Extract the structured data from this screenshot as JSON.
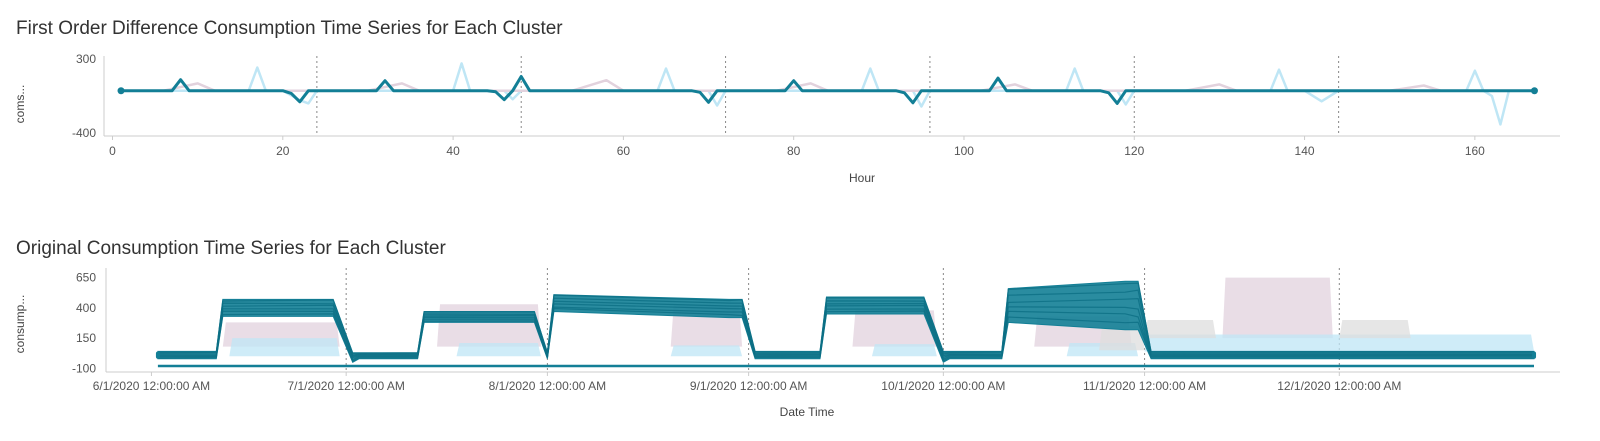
{
  "colors": {
    "highlight": "#137f96",
    "light_blue": "#bfe6f5",
    "pink": "#e2d2dd",
    "grey": "#dedede",
    "axis": "#cccccc",
    "divider": "#888888"
  },
  "chart_data": [
    {
      "type": "line",
      "title": "First Order Difference Consumption Time Series for Each Cluster",
      "xlabel": "Hour",
      "ylabel": "coms...",
      "xlim": [
        -1,
        170
      ],
      "ylim": [
        -430,
        330
      ],
      "x_ticks": [
        0,
        20,
        40,
        60,
        80,
        100,
        120,
        140,
        160
      ],
      "y_ticks": [
        300,
        -400
      ],
      "dividers": [
        24,
        48,
        72,
        96,
        120,
        144
      ],
      "highlight_series": {
        "x": [
          1,
          2,
          4,
          6,
          7,
          8,
          9,
          10,
          12,
          14,
          16,
          18,
          20,
          21,
          22,
          23,
          24,
          26,
          28,
          30,
          31,
          32,
          33,
          34,
          36,
          38,
          40,
          42,
          44,
          45,
          46,
          47,
          48,
          49,
          50,
          52,
          54,
          56,
          58,
          60,
          62,
          64,
          66,
          68,
          69,
          70,
          71,
          72,
          74,
          76,
          78,
          79,
          80,
          81,
          82,
          84,
          86,
          88,
          90,
          92,
          93,
          94,
          95,
          96,
          98,
          100,
          102,
          103,
          104,
          105,
          106,
          108,
          110,
          112,
          114,
          116,
          117,
          118,
          119,
          120,
          122,
          124,
          126,
          128,
          130,
          132,
          134,
          136,
          138,
          140,
          142,
          144,
          146,
          148,
          150,
          152,
          154,
          156,
          158,
          160,
          162,
          164,
          167
        ],
        "y": [
          0,
          0,
          0,
          0,
          0,
          105,
          0,
          0,
          0,
          0,
          0,
          0,
          0,
          -25,
          -105,
          0,
          0,
          0,
          0,
          0,
          0,
          95,
          0,
          0,
          0,
          0,
          0,
          0,
          0,
          -10,
          -85,
          0,
          135,
          0,
          0,
          0,
          0,
          0,
          0,
          0,
          0,
          0,
          0,
          0,
          -15,
          -110,
          0,
          0,
          0,
          0,
          0,
          0,
          95,
          0,
          0,
          0,
          0,
          0,
          0,
          0,
          -20,
          -115,
          0,
          0,
          0,
          0,
          0,
          0,
          120,
          0,
          0,
          0,
          0,
          0,
          0,
          0,
          -20,
          -120,
          0,
          0,
          0,
          0,
          0,
          0,
          0,
          0,
          0,
          0,
          0,
          0,
          0,
          0,
          0,
          0,
          0,
          0,
          0,
          0,
          0,
          0,
          0,
          0,
          0
        ]
      },
      "background_series": [
        {
          "color_key": "light_blue",
          "x": [
            1,
            4,
            8,
            10,
            12,
            16,
            17,
            18,
            20,
            22,
            23,
            24,
            26,
            28,
            32,
            34,
            36,
            40,
            41,
            42,
            44,
            46,
            47,
            48,
            50,
            52,
            56,
            60,
            64,
            65,
            66,
            68,
            70,
            71,
            72,
            74,
            76,
            80,
            84,
            88,
            89,
            90,
            92,
            94,
            95,
            96,
            98,
            100,
            104,
            108,
            112,
            113,
            114,
            116,
            118,
            119,
            120,
            124,
            128,
            132,
            136,
            137,
            138,
            140,
            142,
            144,
            148,
            152,
            156,
            159,
            160,
            161,
            162,
            163,
            164,
            167
          ],
          "y": [
            0,
            0,
            0,
            0,
            0,
            0,
            220,
            0,
            0,
            -90,
            -120,
            0,
            0,
            0,
            0,
            0,
            0,
            0,
            260,
            0,
            0,
            0,
            -80,
            0,
            0,
            0,
            0,
            0,
            0,
            210,
            0,
            0,
            0,
            -140,
            0,
            0,
            0,
            0,
            0,
            0,
            210,
            0,
            0,
            0,
            -150,
            0,
            0,
            0,
            0,
            0,
            0,
            210,
            0,
            0,
            0,
            -130,
            0,
            0,
            0,
            0,
            0,
            200,
            0,
            0,
            -100,
            0,
            0,
            0,
            0,
            0,
            190,
            0,
            -50,
            -320,
            0,
            0
          ]
        },
        {
          "color_key": "pink",
          "x": [
            1,
            6,
            10,
            12,
            16,
            24,
            30,
            34,
            36,
            40,
            48,
            54,
            58,
            60,
            64,
            72,
            78,
            82,
            84,
            88,
            96,
            102,
            106,
            108,
            112,
            120,
            126,
            130,
            132,
            136,
            144,
            150,
            154,
            156,
            160,
            167
          ],
          "y": [
            0,
            0,
            70,
            0,
            0,
            0,
            0,
            70,
            0,
            0,
            0,
            0,
            100,
            0,
            0,
            0,
            0,
            70,
            0,
            0,
            0,
            0,
            60,
            0,
            0,
            0,
            0,
            60,
            0,
            0,
            0,
            0,
            50,
            0,
            0,
            0
          ]
        }
      ]
    },
    {
      "type": "line",
      "title": "Original Consumption Time Series for Each Cluster",
      "xlabel": "Date Time",
      "ylabel": "consump...",
      "xlim": [
        "2020-05-25",
        "2021-01-04"
      ],
      "ylim": [
        -130,
        730
      ],
      "x_ticks": [
        {
          "date": "2020-06-01",
          "label": "6/1/2020 12:00:00 AM"
        },
        {
          "date": "2020-07-01",
          "label": "7/1/2020 12:00:00 AM"
        },
        {
          "date": "2020-08-01",
          "label": "8/1/2020 12:00:00 AM"
        },
        {
          "date": "2020-09-01",
          "label": "9/1/2020 12:00:00 AM"
        },
        {
          "date": "2020-10-01",
          "label": "10/1/2020 12:00:00 AM"
        },
        {
          "date": "2020-11-01",
          "label": "11/1/2020 12:00:00 AM"
        },
        {
          "date": "2020-12-01",
          "label": "12/1/2020 12:00:00 AM"
        }
      ],
      "y_ticks": [
        650,
        400,
        150,
        -100
      ],
      "dividers": [
        "2020-07-01",
        "2020-08-01",
        "2020-09-01",
        "2020-10-01",
        "2020-11-01",
        "2020-12-01"
      ],
      "highlight_band": {
        "x": [
          "2020-06-02",
          "2020-06-11",
          "2020-06-12",
          "2020-06-29",
          "2020-07-02",
          "2020-07-03",
          "2020-07-12",
          "2020-07-13",
          "2020-07-30",
          "2020-08-01",
          "2020-08-02",
          "2020-08-29",
          "2020-08-31",
          "2020-09-02",
          "2020-09-12",
          "2020-09-13",
          "2020-09-28",
          "2020-10-01",
          "2020-10-02",
          "2020-10-10",
          "2020-10-11",
          "2020-10-29",
          "2020-10-31",
          "2020-11-02",
          "2020-12-31"
        ],
        "low": [
          -20,
          -20,
          330,
          330,
          -50,
          -20,
          -20,
          280,
          280,
          -20,
          370,
          320,
          320,
          -20,
          -20,
          350,
          350,
          -50,
          -20,
          -20,
          280,
          220,
          220,
          -20,
          -20
        ],
        "high": [
          40,
          40,
          470,
          470,
          30,
          30,
          30,
          370,
          370,
          30,
          510,
          470,
          470,
          40,
          40,
          490,
          490,
          40,
          40,
          40,
          560,
          620,
          620,
          40,
          40
        ]
      },
      "flat_series": {
        "x": [
          "2020-06-02",
          "2020-12-31"
        ],
        "y": [
          -80,
          -80
        ]
      },
      "background_bands": [
        {
          "color_key": "pink",
          "segments": [
            {
              "x": [
                "2020-06-12",
                "2020-06-30"
              ],
              "low": 80,
              "high": 280
            },
            {
              "x": [
                "2020-07-15",
                "2020-07-31"
              ],
              "low": 80,
              "high": 430
            },
            {
              "x": [
                "2020-08-20",
                "2020-08-31"
              ],
              "low": 80,
              "high": 420
            },
            {
              "x": [
                "2020-09-17",
                "2020-09-30"
              ],
              "low": 80,
              "high": 380
            },
            {
              "x": [
                "2020-10-15",
                "2020-10-30"
              ],
              "low": 80,
              "high": 330
            },
            {
              "x": [
                "2020-11-13",
                "2020-11-30"
              ],
              "low": 150,
              "high": 650
            }
          ]
        },
        {
          "color_key": "light_blue",
          "segments": [
            {
              "x": [
                "2020-06-13",
                "2020-06-30"
              ],
              "low": 0,
              "high": 150
            },
            {
              "x": [
                "2020-07-18",
                "2020-07-31"
              ],
              "low": 0,
              "high": 110
            },
            {
              "x": [
                "2020-08-20",
                "2020-08-31"
              ],
              "low": 0,
              "high": 90
            },
            {
              "x": [
                "2020-09-20",
                "2020-09-30"
              ],
              "low": 0,
              "high": 100
            },
            {
              "x": [
                "2020-10-20",
                "2020-10-31"
              ],
              "low": 0,
              "high": 110
            },
            {
              "x": [
                "2020-11-01",
                "2020-12-31"
              ],
              "low": 40,
              "high": 180
            }
          ]
        },
        {
          "color_key": "grey",
          "segments": [
            {
              "x": [
                "2020-10-25",
                "2020-11-01"
              ],
              "low": 50,
              "high": 250
            },
            {
              "x": [
                "2020-11-01",
                "2020-11-12"
              ],
              "low": 150,
              "high": 300
            },
            {
              "x": [
                "2020-12-01",
                "2020-12-12"
              ],
              "low": 150,
              "high": 300
            }
          ]
        }
      ]
    }
  ]
}
